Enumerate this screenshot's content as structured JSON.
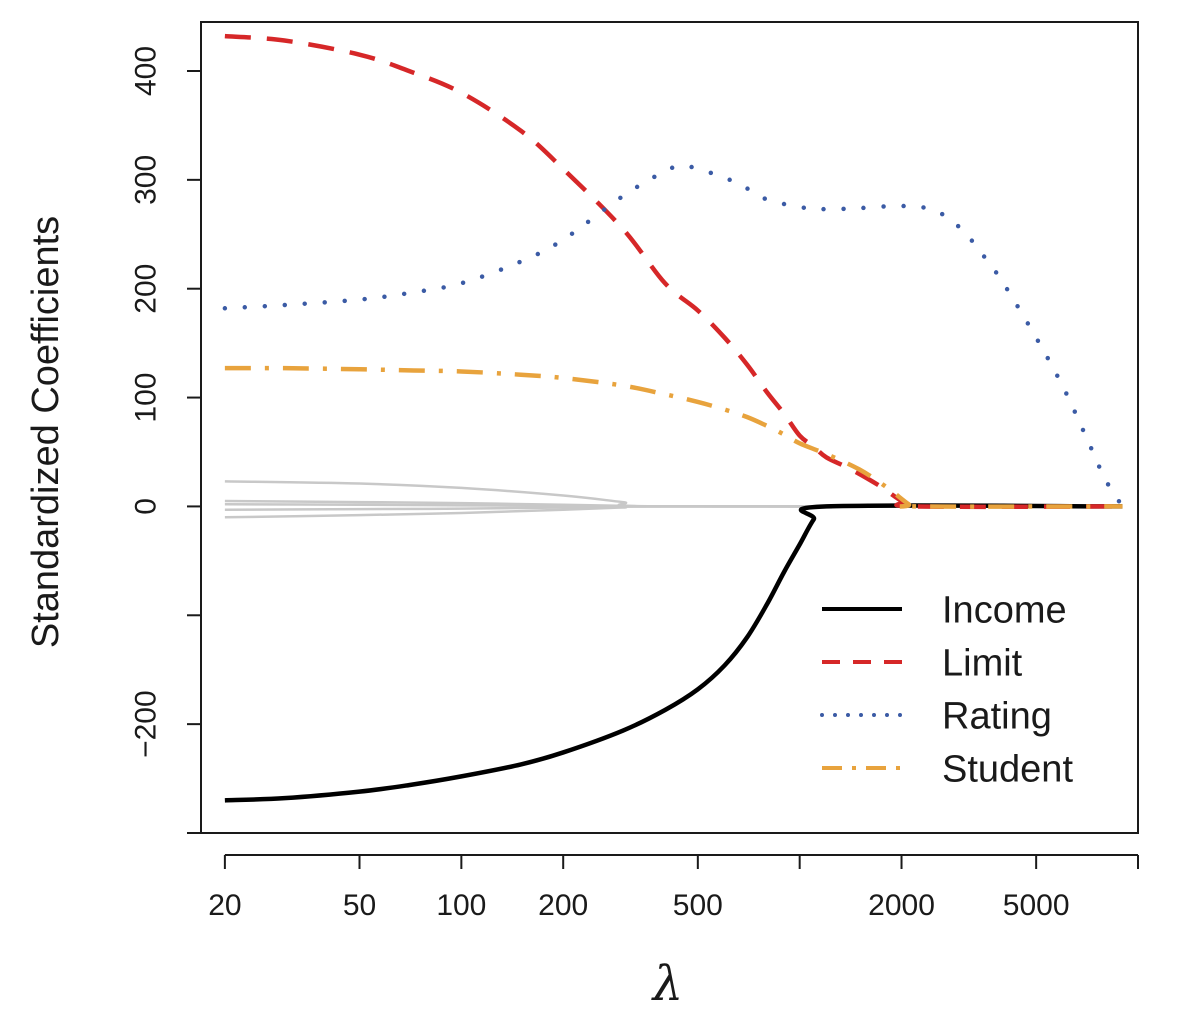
{
  "chart_data": {
    "type": "line",
    "title": "",
    "xlabel": "λ",
    "ylabel": "Standardized Coefficients",
    "x_scale": "log",
    "xlim": [
      17,
      10000
    ],
    "ylim": [
      -300,
      445
    ],
    "x_ticks": [
      20,
      50,
      100,
      200,
      500,
      1000,
      2000,
      5000,
      10000
    ],
    "x_tick_labels": [
      "20",
      "50",
      "100",
      "200",
      "500",
      "",
      "2000",
      "5000",
      ""
    ],
    "y_ticks": [
      -300,
      -200,
      -100,
      0,
      100,
      200,
      300,
      400
    ],
    "y_tick_labels": [
      "",
      "−200",
      "",
      "0",
      "100",
      "200",
      "300",
      "400"
    ],
    "grid": false,
    "legend_position": "bottom-right",
    "colors": {
      "Income": "#000000",
      "Limit": "#d62728",
      "Rating": "#3b5ba5",
      "Student": "#e8a33d",
      "other": "#c8c8c8"
    },
    "series": [
      {
        "name": "Income",
        "style": "solid",
        "x": [
          20,
          30,
          50,
          70,
          100,
          150,
          200,
          300,
          400,
          500,
          600,
          700,
          800,
          900,
          1000,
          1100,
          1200,
          9000
        ],
        "y": [
          -270,
          -268,
          -262,
          -256,
          -248,
          -237,
          -226,
          -206,
          -187,
          -168,
          -146,
          -120,
          -90,
          -60,
          -35,
          -12,
          0,
          0
        ]
      },
      {
        "name": "Limit",
        "style": "dashed",
        "x": [
          20,
          30,
          50,
          70,
          100,
          150,
          200,
          300,
          400,
          500,
          600,
          700,
          800,
          900,
          1000,
          1100,
          1200,
          1400,
          1700,
          2000,
          2200,
          9000
        ],
        "y": [
          432,
          428,
          415,
          400,
          380,
          345,
          310,
          255,
          205,
          180,
          155,
          130,
          105,
          85,
          65,
          55,
          45,
          35,
          20,
          5,
          0,
          0
        ]
      },
      {
        "name": "Rating",
        "style": "dotted",
        "x": [
          20,
          30,
          50,
          70,
          100,
          150,
          200,
          300,
          400,
          450,
          500,
          600,
          700,
          800,
          1000,
          1200,
          1500,
          2000,
          2500,
          3000,
          3500,
          4000,
          5000,
          6000,
          7000,
          8000,
          9000
        ],
        "y": [
          182,
          185,
          190,
          196,
          205,
          225,
          245,
          285,
          308,
          313,
          310,
          302,
          292,
          282,
          275,
          273,
          274,
          276,
          272,
          255,
          230,
          205,
          155,
          110,
          65,
          25,
          0
        ]
      },
      {
        "name": "Student",
        "style": "dashdot",
        "x": [
          20,
          30,
          50,
          70,
          100,
          150,
          200,
          300,
          400,
          500,
          600,
          700,
          800,
          900,
          1000,
          1200,
          1500,
          1800,
          2100,
          2200,
          9000
        ],
        "y": [
          127,
          127,
          126,
          125,
          124,
          121,
          118,
          111,
          103,
          96,
          89,
          82,
          74,
          66,
          58,
          48,
          34,
          18,
          2,
          0,
          0
        ]
      },
      {
        "style": "solid-thin",
        "x": [
          20,
          50,
          100,
          200,
          300,
          400,
          9000
        ],
        "y": [
          23,
          21,
          17,
          10,
          4,
          0,
          0
        ]
      },
      {
        "style": "solid-thin",
        "x": [
          20,
          50,
          100,
          200,
          300,
          400,
          9000
        ],
        "y": [
          5,
          4,
          3,
          1.5,
          0.5,
          0,
          0
        ]
      },
      {
        "style": "solid-thin",
        "x": [
          20,
          50,
          100,
          200,
          300,
          400,
          9000
        ],
        "y": [
          2,
          1.5,
          1,
          0.5,
          0.2,
          0,
          0
        ]
      },
      {
        "style": "solid-thin",
        "x": [
          20,
          50,
          100,
          200,
          300,
          400,
          9000
        ],
        "y": [
          -3,
          -2.5,
          -2,
          -1,
          -0.4,
          0,
          0
        ]
      },
      {
        "style": "solid-thin",
        "x": [
          20,
          50,
          100,
          200,
          300,
          400,
          9000
        ],
        "y": [
          -10,
          -8,
          -6,
          -3,
          -1,
          0,
          0
        ]
      }
    ],
    "legend": [
      {
        "label": "Income",
        "style": "solid"
      },
      {
        "label": "Limit",
        "style": "dashed"
      },
      {
        "label": "Rating",
        "style": "dotted"
      },
      {
        "label": "Student",
        "style": "dashdot"
      }
    ]
  }
}
